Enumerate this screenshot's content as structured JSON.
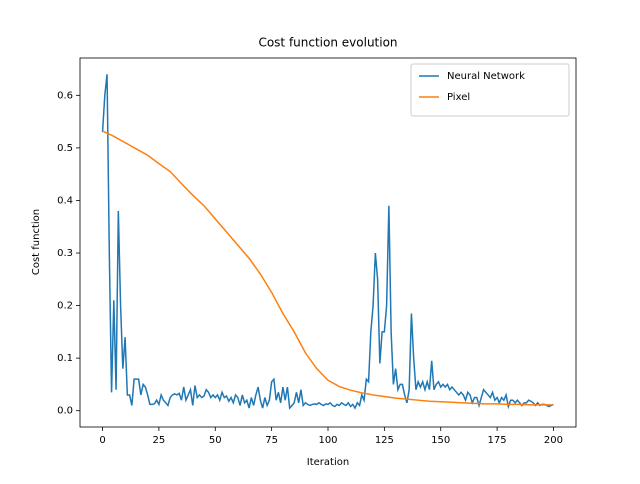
{
  "chart_data": {
    "type": "line",
    "title": "Cost function evolution",
    "x_label": "Iteration",
    "y_label": "Cost function",
    "xlim": [
      -10,
      210
    ],
    "xticks": [
      0,
      25,
      50,
      75,
      100,
      125,
      150,
      175,
      200
    ],
    "ylim": [
      -0.031,
      0.671
    ],
    "yticks": [
      {
        "value": 0,
        "label": "0.0"
      },
      0.1,
      0.2,
      0.3,
      0.4,
      0.5,
      0.6
    ],
    "grid": false,
    "legend": "upper right",
    "series": [
      {
        "name": "Neural Network",
        "color": "#1f77b4",
        "x": [
          0,
          1,
          2,
          3,
          4,
          5,
          6,
          7,
          8,
          9,
          10,
          11,
          12,
          13,
          14,
          15,
          16,
          17,
          18,
          19,
          20,
          21,
          22,
          23,
          24,
          25,
          26,
          27,
          28,
          29,
          30,
          31,
          32,
          33,
          34,
          35,
          36,
          37,
          38,
          39,
          40,
          41,
          42,
          43,
          44,
          45,
          46,
          47,
          48,
          49,
          50,
          51,
          52,
          53,
          54,
          55,
          56,
          57,
          58,
          59,
          60,
          61,
          62,
          63,
          64,
          65,
          66,
          67,
          68,
          69,
          70,
          71,
          72,
          73,
          74,
          75,
          76,
          77,
          78,
          79,
          80,
          81,
          82,
          83,
          84,
          85,
          86,
          87,
          88,
          89,
          90,
          91,
          92,
          93,
          94,
          95,
          96,
          97,
          98,
          99,
          100,
          101,
          102,
          103,
          104,
          105,
          106,
          107,
          108,
          109,
          110,
          111,
          112,
          113,
          114,
          115,
          116,
          117,
          118,
          119,
          120,
          121,
          122,
          123,
          124,
          125,
          126,
          127,
          128,
          129,
          130,
          131,
          132,
          133,
          134,
          135,
          136,
          137,
          138,
          139,
          140,
          141,
          142,
          143,
          144,
          145,
          146,
          147,
          148,
          149,
          150,
          151,
          152,
          153,
          154,
          155,
          156,
          157,
          158,
          159,
          160,
          161,
          162,
          163,
          164,
          165,
          166,
          167,
          168,
          169,
          170,
          171,
          172,
          173,
          174,
          175,
          176,
          177,
          178,
          179,
          180,
          181,
          182,
          183,
          184,
          185,
          186,
          187,
          188,
          189,
          190,
          191,
          192,
          193,
          194,
          195,
          196,
          197,
          198,
          199,
          200
        ],
        "values": [
          0.53,
          0.6,
          0.64,
          0.3,
          0.035,
          0.21,
          0.04,
          0.38,
          0.2,
          0.08,
          0.14,
          0.03,
          0.03,
          0.01,
          0.06,
          0.06,
          0.06,
          0.03,
          0.05,
          0.045,
          0.03,
          0.012,
          0.012,
          0.013,
          0.02,
          0.012,
          0.03,
          0.02,
          0.015,
          0.01,
          0.025,
          0.03,
          0.032,
          0.03,
          0.033,
          0.02,
          0.045,
          0.02,
          0.03,
          0.04,
          0.01,
          0.048,
          0.025,
          0.03,
          0.025,
          0.028,
          0.04,
          0.035,
          0.025,
          0.03,
          0.025,
          0.03,
          0.02,
          0.035,
          0.025,
          0.028,
          0.018,
          0.025,
          0.015,
          0.03,
          0.025,
          0.01,
          0.03,
          0.015,
          0.02,
          0.005,
          0.025,
          0.01,
          0.03,
          0.045,
          0.02,
          0.005,
          0.025,
          0.01,
          0.02,
          0.055,
          0.06,
          0.02,
          0.035,
          0.015,
          0.045,
          0.02,
          0.045,
          0.005,
          0.01,
          0.015,
          0.035,
          0.015,
          0.04,
          0.01,
          0.015,
          0.012,
          0.01,
          0.012,
          0.013,
          0.012,
          0.015,
          0.012,
          0.01,
          0.013,
          0.012,
          0.015,
          0.01,
          0.008,
          0.012,
          0.01,
          0.015,
          0.012,
          0.01,
          0.015,
          0.008,
          0.012,
          0.005,
          0.015,
          0.01,
          0.03,
          0.02,
          0.06,
          0.055,
          0.15,
          0.2,
          0.3,
          0.25,
          0.09,
          0.15,
          0.15,
          0.2,
          0.39,
          0.15,
          0.05,
          0.08,
          0.04,
          0.05,
          0.05,
          0.03,
          0.015,
          0.04,
          0.185,
          0.1,
          0.04,
          0.055,
          0.045,
          0.055,
          0.04,
          0.055,
          0.04,
          0.095,
          0.04,
          0.05,
          0.055,
          0.045,
          0.05,
          0.045,
          0.05,
          0.04,
          0.045,
          0.04,
          0.035,
          0.03,
          0.035,
          0.03,
          0.02,
          0.035,
          0.03,
          0.015,
          0.025,
          0.025,
          0.01,
          0.025,
          0.04,
          0.035,
          0.03,
          0.025,
          0.035,
          0.02,
          0.025,
          0.015,
          0.025,
          0.02,
          0.03,
          0.008,
          0.02,
          0.02,
          0.015,
          0.02,
          0.015,
          0.01,
          0.015,
          0.015,
          0.02,
          0.018,
          0.015,
          0.01,
          0.015,
          0.01,
          0.012,
          0.012,
          0.01,
          0.008,
          0.01,
          0.012
        ]
      },
      {
        "name": "Pixel",
        "color": "#ff7f0e",
        "x": [
          0,
          5,
          10,
          15,
          20,
          25,
          30,
          35,
          40,
          45,
          50,
          55,
          60,
          65,
          70,
          75,
          80,
          85,
          90,
          95,
          100,
          105,
          110,
          115,
          120,
          125,
          130,
          135,
          140,
          145,
          150,
          155,
          160,
          165,
          170,
          175,
          180,
          185,
          190,
          195,
          200
        ],
        "values": [
          0.532,
          0.522,
          0.51,
          0.498,
          0.486,
          0.47,
          0.455,
          0.432,
          0.41,
          0.39,
          0.365,
          0.34,
          0.315,
          0.29,
          0.26,
          0.225,
          0.185,
          0.15,
          0.11,
          0.08,
          0.058,
          0.046,
          0.039,
          0.034,
          0.03,
          0.027,
          0.024,
          0.022,
          0.02,
          0.018,
          0.017,
          0.016,
          0.015,
          0.014,
          0.013,
          0.013,
          0.012,
          0.012,
          0.011,
          0.011,
          0.011
        ]
      }
    ]
  }
}
